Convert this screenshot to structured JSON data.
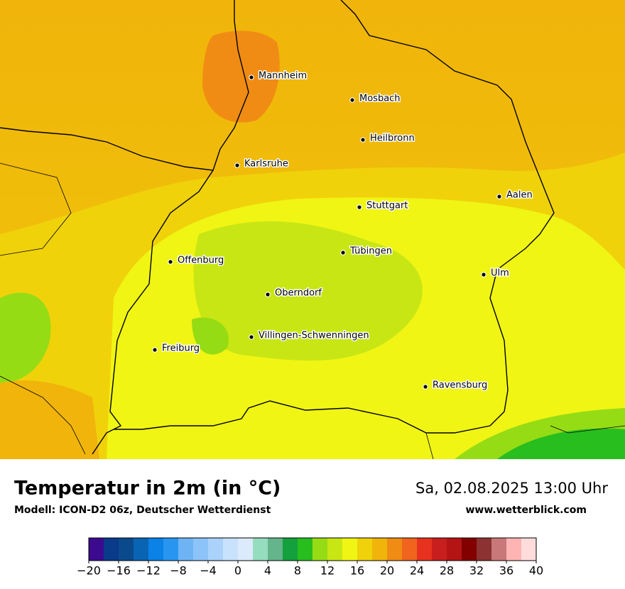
{
  "header": {
    "title": "Temperatur in 2m (in °C)",
    "model": "Modell: ICON-D2 06z, Deutscher Wetterdienst",
    "datetime": "Sa, 02.08.2025 13:00 Uhr",
    "website": "www.wetterblick.com"
  },
  "cities": [
    "Mannheim",
    "Mosbach",
    "Heilbronn",
    "Karlsruhe",
    "Aalen",
    "Stuttgart",
    "Tübingen",
    "Offenburg",
    "Ulm",
    "Oberndorf",
    "Villingen-Schwenningen",
    "Freiburg",
    "Ravensburg"
  ],
  "colorbar": {
    "range": [
      -20,
      40
    ],
    "colors": [
      "#3b0a8f",
      "#0a3a8a",
      "#0a4a8c",
      "#0a64b4",
      "#0a82e6",
      "#2896f0",
      "#6eb4f5",
      "#8cc3f8",
      "#aad2fa",
      "#c8e1fc",
      "#dcebfc",
      "#96dcbe",
      "#64b48c",
      "#14a03c",
      "#28be1e",
      "#96dc14",
      "#c8e614",
      "#f0f514",
      "#f0d20a",
      "#f0b40a",
      "#f08c14",
      "#f0641e",
      "#e6321e",
      "#c81e1e",
      "#b41414",
      "#820000",
      "#8c3232",
      "#c87878",
      "#ffb4b4",
      "#ffdcdc"
    ],
    "ticks": [
      {
        "value": -20,
        "label": "−20"
      },
      {
        "value": -16,
        "label": "−16"
      },
      {
        "value": -12,
        "label": "−12"
      },
      {
        "value": -8,
        "label": "−8"
      },
      {
        "value": -4,
        "label": "−4"
      },
      0,
      4,
      8,
      12,
      16,
      20,
      24,
      28,
      32,
      36,
      40
    ]
  }
}
